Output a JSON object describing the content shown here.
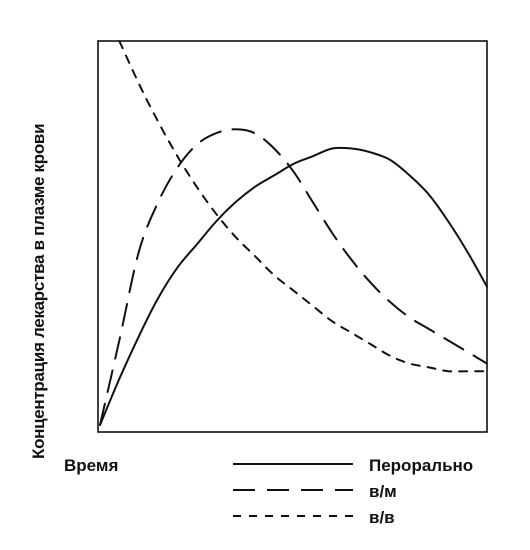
{
  "chart_data": {
    "type": "line",
    "title": "",
    "xlabel": "Время",
    "ylabel": "Концентрация лекарства в плазме крови",
    "xlim": [
      0,
      100
    ],
    "ylim": [
      0,
      100
    ],
    "grid": false,
    "axis_ticks": false,
    "legend_position": "bottom-right",
    "series": [
      {
        "name": "Перорально",
        "style": "solid",
        "color": "#111111",
        "x": [
          0,
          5,
          10,
          15,
          20,
          25,
          30,
          35,
          40,
          45,
          50,
          55,
          60,
          65,
          70,
          75,
          80,
          85,
          90,
          95,
          100
        ],
        "y": [
          0,
          12,
          23,
          33,
          41,
          47,
          53,
          58,
          62,
          65,
          68,
          70,
          72,
          72,
          71,
          69,
          65,
          60,
          53,
          45,
          36
        ]
      },
      {
        "name": "в/м",
        "style": "long-dash",
        "color": "#111111",
        "x": [
          0,
          5,
          10,
          15,
          20,
          25,
          30,
          35,
          40,
          45,
          50,
          55,
          60,
          65,
          70,
          75,
          80,
          85,
          90,
          95,
          100
        ],
        "y": [
          0,
          22,
          45,
          58,
          67,
          73,
          76,
          77,
          76,
          72,
          66,
          58,
          50,
          43,
          37,
          32,
          28,
          25,
          22,
          19,
          16
        ]
      },
      {
        "name": "в/в",
        "style": "short-dash",
        "color": "#111111",
        "x": [
          5,
          10,
          15,
          20,
          25,
          30,
          35,
          40,
          45,
          50,
          55,
          60,
          65,
          70,
          75,
          80,
          85,
          90,
          95,
          100
        ],
        "y": [
          100,
          89,
          79,
          70,
          62,
          55,
          49,
          44,
          39,
          35,
          31,
          27,
          24,
          21,
          18,
          16,
          15,
          14,
          14,
          14
        ]
      }
    ]
  }
}
